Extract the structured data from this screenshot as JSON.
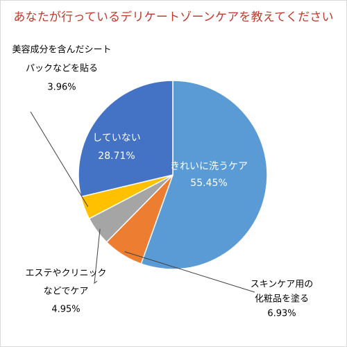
{
  "chart_data": {
    "type": "pie",
    "title": "あなたが行っているデリケートゾーンケアを教えてください",
    "slices": [
      {
        "label": "きれいに洗うケア",
        "label_lines": [
          "きれいに洗うケア",
          "55.45%"
        ],
        "value": 55.45,
        "color": "#5b9bd5"
      },
      {
        "label": "スキンケア用の化粧品を塗る",
        "label_lines": [
          "スキンケア用の",
          "化粧品を塗る",
          "6.93%"
        ],
        "value": 6.93,
        "color": "#ed7d31"
      },
      {
        "label": "エステやクリニックなどでケア",
        "label_lines": [
          "エステやクリニック",
          "などでケア",
          "4.95%"
        ],
        "value": 4.95,
        "color": "#a5a5a5"
      },
      {
        "label": "美容成分を含んだシートパックなどを貼る",
        "label_lines": [
          "美容成分を含んだシート",
          "パックなどを貼る",
          "3.96%"
        ],
        "value": 3.96,
        "color": "#ffc000"
      },
      {
        "label": "していない",
        "label_lines": [
          "していない",
          "28.71%"
        ],
        "value": 28.71,
        "color": "#4472c4"
      }
    ]
  }
}
